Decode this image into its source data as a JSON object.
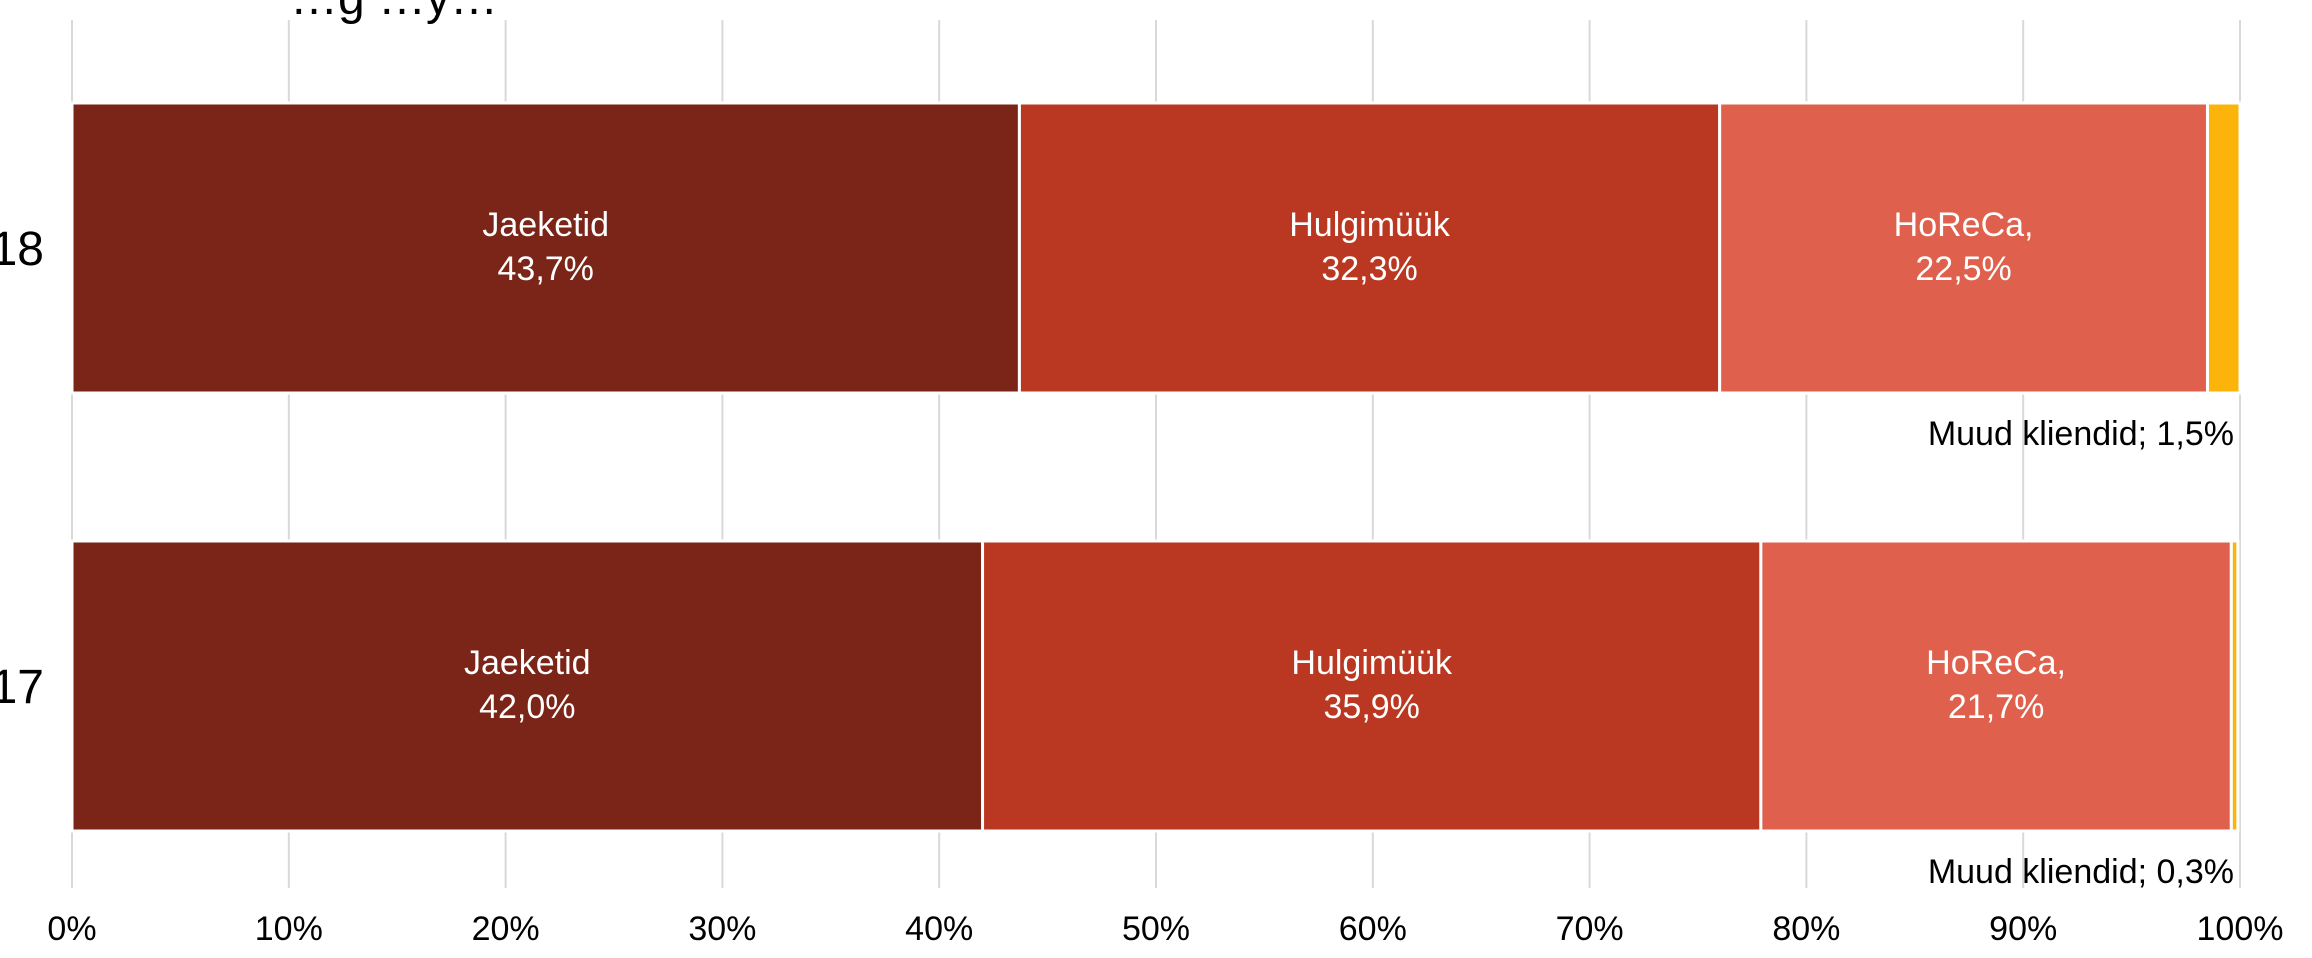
{
  "chart_data": {
    "type": "bar",
    "orientation": "horizontal",
    "stacked": true,
    "percent": true,
    "title": "…g …y…",
    "categories": [
      "…18",
      "…17"
    ],
    "series": [
      {
        "name": "Jaeketid",
        "values": [
          43.7,
          42.0
        ],
        "color": "#7B2418"
      },
      {
        "name": "Hulgimüük",
        "values": [
          32.3,
          35.9
        ],
        "color": "#BA3822"
      },
      {
        "name": "HoReCa,",
        "values": [
          22.5,
          21.7
        ],
        "color": "#DF604C"
      },
      {
        "name": "Muud kliendid",
        "values": [
          1.5,
          0.3
        ],
        "color": "#FCB40A"
      }
    ],
    "inner_labels": [
      [
        {
          "name": "Jaeketid",
          "value": "43,7%"
        },
        {
          "name": "Hulgimüük",
          "value": "32,3%"
        },
        {
          "name": "HoReCa,",
          "value": "22,5%"
        }
      ],
      [
        {
          "name": "Jaeketid",
          "value": "42,0%"
        },
        {
          "name": "Hulgimüük",
          "value": "35,9%"
        },
        {
          "name": "HoReCa,",
          "value": "21,7%"
        }
      ]
    ],
    "outside_labels": [
      "Muud kliendid; 1,5%",
      "Muud kliendid; 0,3%"
    ],
    "x_ticks": [
      "0%",
      "10%",
      "20%",
      "30%",
      "40%",
      "50%",
      "60%",
      "70%",
      "80%",
      "90%",
      "100%"
    ],
    "xlim": [
      0,
      100
    ],
    "grid": true,
    "grid_color": "#D9D9D9"
  }
}
